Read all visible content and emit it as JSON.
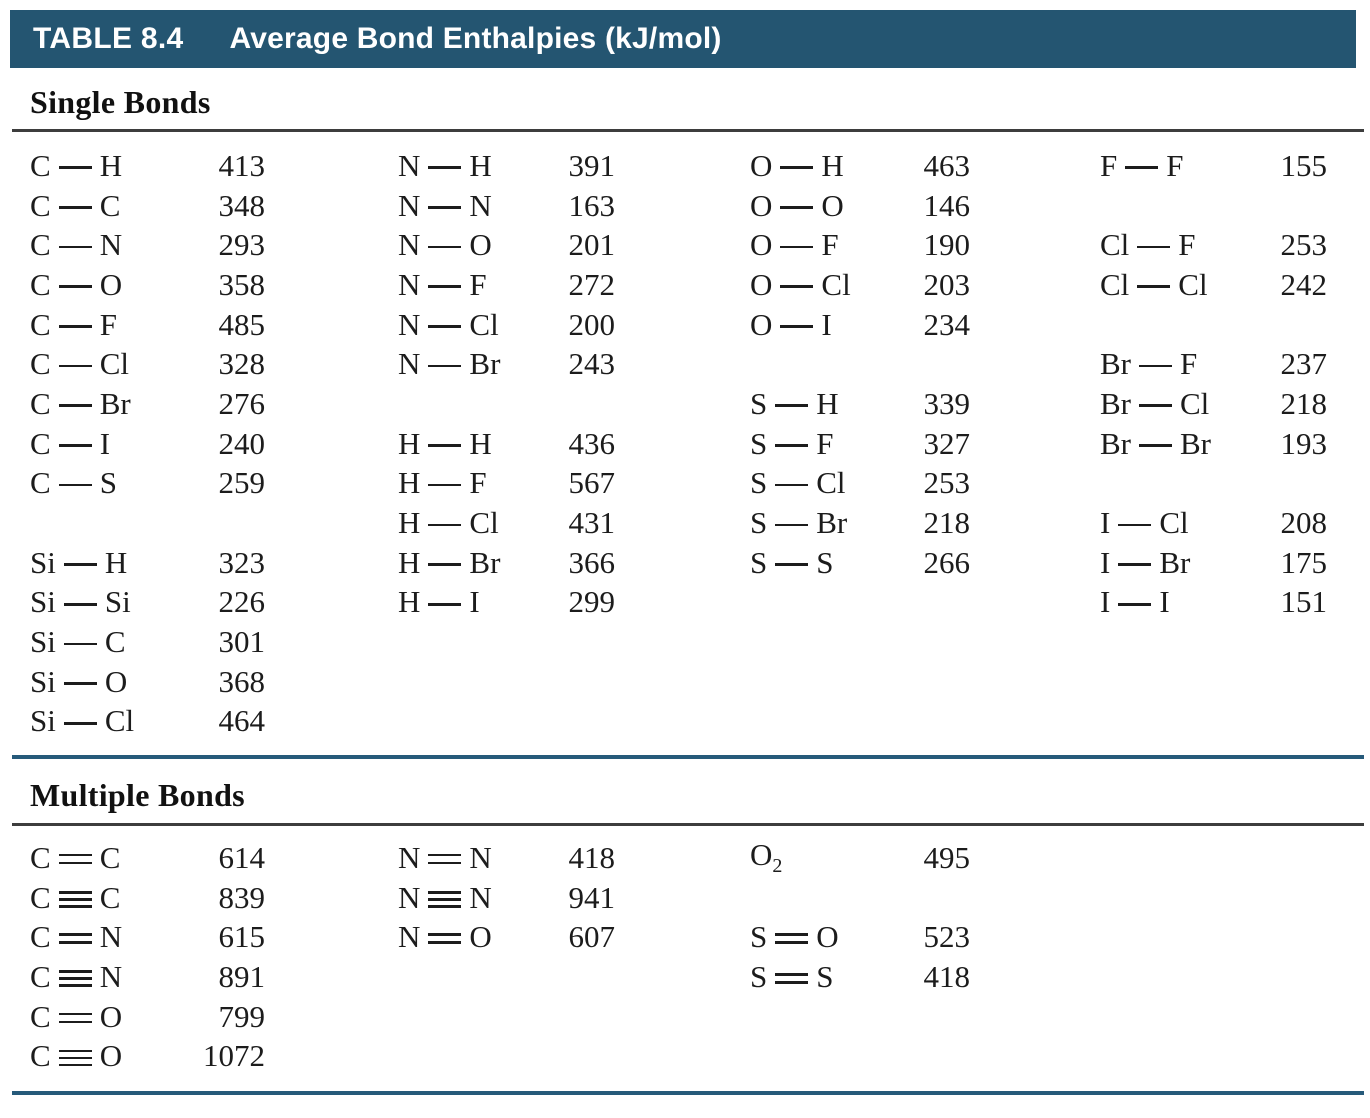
{
  "header": {
    "label": "TABLE 8.4",
    "title": "Average Bond Enthalpies (kJ/mol)"
  },
  "colors": {
    "header_bar_bg": "#245571",
    "header_text": "#ffffff",
    "section_rule_teal": "#265a7a",
    "heading_rule_dark": "#3d3d3d",
    "body_text": "#1c1c1c"
  },
  "sections": [
    {
      "heading": "Single Bonds",
      "columns": [
        {
          "cells": [
            {
              "left": "C",
              "bond": 1,
              "right": "H",
              "value": "413"
            },
            {
              "left": "C",
              "bond": 1,
              "right": "C",
              "value": "348"
            },
            {
              "left": "C",
              "bond": 1,
              "right": "N",
              "value": "293"
            },
            {
              "left": "C",
              "bond": 1,
              "right": "O",
              "value": "358"
            },
            {
              "left": "C",
              "bond": 1,
              "right": "F",
              "value": "485"
            },
            {
              "left": "C",
              "bond": 1,
              "right": "Cl",
              "value": "328"
            },
            {
              "left": "C",
              "bond": 1,
              "right": "Br",
              "value": "276"
            },
            {
              "left": "C",
              "bond": 1,
              "right": "I",
              "value": "240"
            },
            {
              "left": "C",
              "bond": 1,
              "right": "S",
              "value": "259"
            },
            null,
            {
              "left": "Si",
              "bond": 1,
              "right": "H",
              "value": "323"
            },
            {
              "left": "Si",
              "bond": 1,
              "right": "Si",
              "value": "226"
            },
            {
              "left": "Si",
              "bond": 1,
              "right": "C",
              "value": "301"
            },
            {
              "left": "Si",
              "bond": 1,
              "right": "O",
              "value": "368"
            },
            {
              "left": "Si",
              "bond": 1,
              "right": "Cl",
              "value": "464"
            }
          ]
        },
        {
          "cells": [
            {
              "left": "N",
              "bond": 1,
              "right": "H",
              "value": "391"
            },
            {
              "left": "N",
              "bond": 1,
              "right": "N",
              "value": "163"
            },
            {
              "left": "N",
              "bond": 1,
              "right": "O",
              "value": "201"
            },
            {
              "left": "N",
              "bond": 1,
              "right": "F",
              "value": "272"
            },
            {
              "left": "N",
              "bond": 1,
              "right": "Cl",
              "value": "200"
            },
            {
              "left": "N",
              "bond": 1,
              "right": "Br",
              "value": "243"
            },
            null,
            {
              "left": "H",
              "bond": 1,
              "right": "H",
              "value": "436"
            },
            {
              "left": "H",
              "bond": 1,
              "right": "F",
              "value": "567"
            },
            {
              "left": "H",
              "bond": 1,
              "right": "Cl",
              "value": "431"
            },
            {
              "left": "H",
              "bond": 1,
              "right": "Br",
              "value": "366"
            },
            {
              "left": "H",
              "bond": 1,
              "right": "I",
              "value": "299"
            },
            null,
            null,
            null
          ]
        },
        {
          "cells": [
            {
              "left": "O",
              "bond": 1,
              "right": "H",
              "value": "463"
            },
            {
              "left": "O",
              "bond": 1,
              "right": "O",
              "value": "146"
            },
            {
              "left": "O",
              "bond": 1,
              "right": "F",
              "value": "190"
            },
            {
              "left": "O",
              "bond": 1,
              "right": "Cl",
              "value": "203"
            },
            {
              "left": "O",
              "bond": 1,
              "right": "I",
              "value": "234"
            },
            null,
            {
              "left": "S",
              "bond": 1,
              "right": "H",
              "value": "339"
            },
            {
              "left": "S",
              "bond": 1,
              "right": "F",
              "value": "327"
            },
            {
              "left": "S",
              "bond": 1,
              "right": "Cl",
              "value": "253"
            },
            {
              "left": "S",
              "bond": 1,
              "right": "Br",
              "value": "218"
            },
            {
              "left": "S",
              "bond": 1,
              "right": "S",
              "value": "266"
            },
            null,
            null,
            null,
            null
          ]
        },
        {
          "cells": [
            {
              "left": "F",
              "bond": 1,
              "right": "F",
              "value": "155"
            },
            null,
            {
              "left": "Cl",
              "bond": 1,
              "right": "F",
              "value": "253"
            },
            {
              "left": "Cl",
              "bond": 1,
              "right": "Cl",
              "value": "242"
            },
            null,
            {
              "left": "Br",
              "bond": 1,
              "right": "F",
              "value": "237"
            },
            {
              "left": "Br",
              "bond": 1,
              "right": "Cl",
              "value": "218"
            },
            {
              "left": "Br",
              "bond": 1,
              "right": "Br",
              "value": "193"
            },
            null,
            {
              "left": "I",
              "bond": 1,
              "right": "Cl",
              "value": "208"
            },
            {
              "left": "I",
              "bond": 1,
              "right": "Br",
              "value": "175"
            },
            {
              "left": "I",
              "bond": 1,
              "right": "I",
              "value": "151"
            },
            null,
            null,
            null
          ]
        }
      ]
    },
    {
      "heading": "Multiple Bonds",
      "columns": [
        {
          "cells": [
            {
              "left": "C",
              "bond": 2,
              "right": "C",
              "value": "614"
            },
            {
              "left": "C",
              "bond": 3,
              "right": "C",
              "value": "839"
            },
            {
              "left": "C",
              "bond": 2,
              "right": "N",
              "value": "615"
            },
            {
              "left": "C",
              "bond": 3,
              "right": "N",
              "value": "891"
            },
            {
              "left": "C",
              "bond": 2,
              "right": "O",
              "value": "799"
            },
            {
              "left": "C",
              "bond": 3,
              "right": "O",
              "value": "1072"
            }
          ]
        },
        {
          "cells": [
            {
              "left": "N",
              "bond": 2,
              "right": "N",
              "value": "418"
            },
            {
              "left": "N",
              "bond": 3,
              "right": "N",
              "value": "941"
            },
            {
              "left": "N",
              "bond": 2,
              "right": "O",
              "value": "607"
            },
            null,
            null,
            null
          ]
        },
        {
          "cells": [
            {
              "formula": "O",
              "subscript": "2",
              "value": "495"
            },
            null,
            {
              "left": "S",
              "bond": 2,
              "right": "O",
              "value": "523"
            },
            {
              "left": "S",
              "bond": 2,
              "right": "S",
              "value": "418"
            },
            null,
            null
          ]
        }
      ]
    }
  ]
}
